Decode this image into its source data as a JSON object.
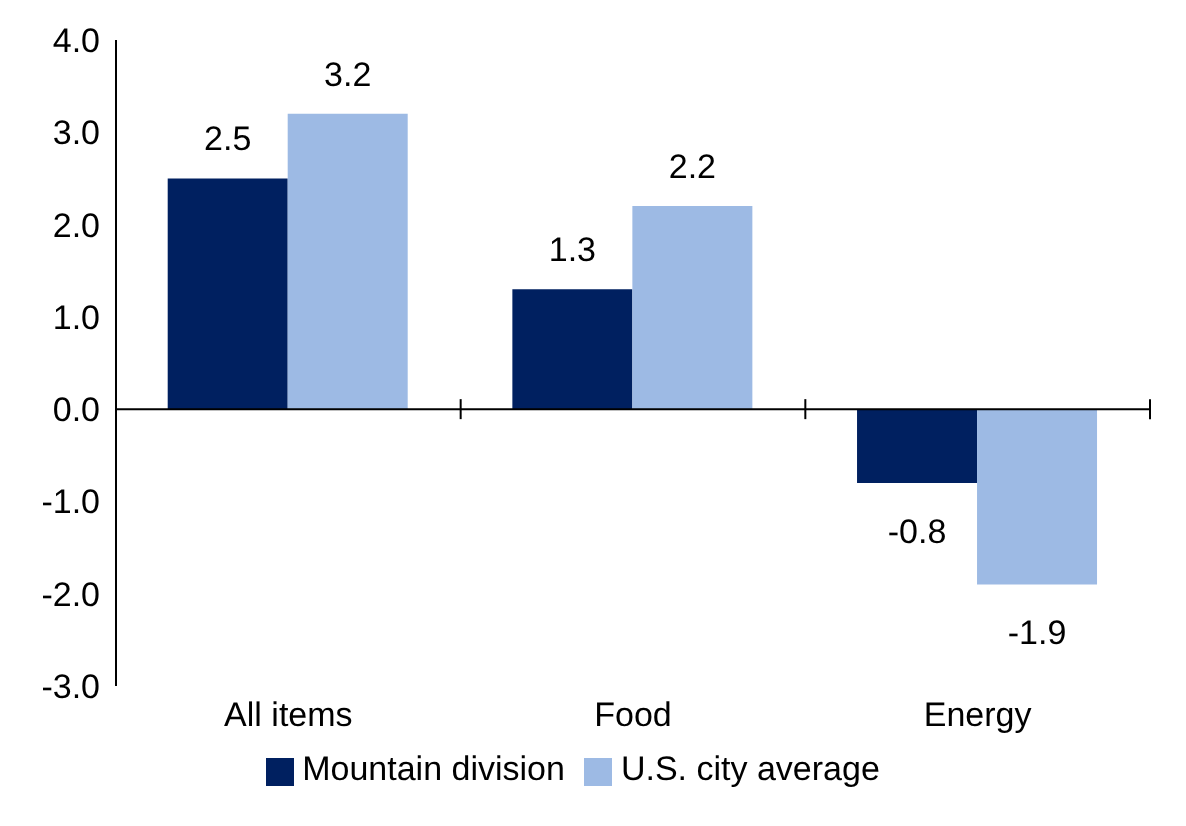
{
  "chart_data": {
    "type": "bar",
    "categories": [
      "All items",
      "Food",
      "Energy"
    ],
    "series": [
      {
        "name": "Mountain division",
        "color": "#002060",
        "values": [
          2.5,
          1.3,
          -0.8
        ]
      },
      {
        "name": "U.S. city average",
        "color": "#9dbae4",
        "values": [
          3.2,
          2.2,
          -1.9
        ]
      }
    ],
    "ylim": [
      -3,
      4
    ],
    "yticks": [
      {
        "value": -3,
        "label": "-3.0"
      },
      {
        "value": -2,
        "label": "-2.0"
      },
      {
        "value": -1,
        "label": "-1.0"
      },
      {
        "value": 0,
        "label": "0.0"
      },
      {
        "value": 1,
        "label": "1.0"
      },
      {
        "value": 2,
        "label": "2.0"
      },
      {
        "value": 3,
        "label": "3.0"
      },
      {
        "value": 4,
        "label": "4.0"
      }
    ],
    "data_labels": true,
    "legend": "bottom"
  }
}
